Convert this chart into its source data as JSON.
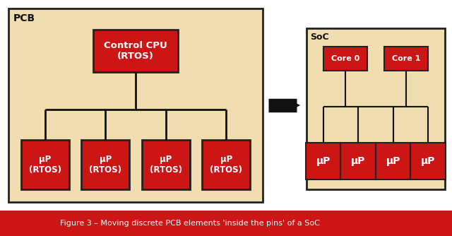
{
  "bg_color": "#f0ddb0",
  "red_color": "#cc1515",
  "white_text": "#ffffff",
  "dark_text": "#111111",
  "border_color": "#222222",
  "caption_bg": "#cc1515",
  "caption_text": "#ffffff",
  "caption": "Figure 3 – Moving discrete PCB elements 'inside the pins' of a SoC",
  "pcb_label": "PCB",
  "soc_label": "SoC",
  "cpu_label": "Control CPU\n(RTOS)",
  "up_rtos_label": "μP\n(RTOS)",
  "up_label": "μP",
  "core0_label": "Core 0",
  "core1_label": "Core 1",
  "outer_bg": "#e0e0e0"
}
